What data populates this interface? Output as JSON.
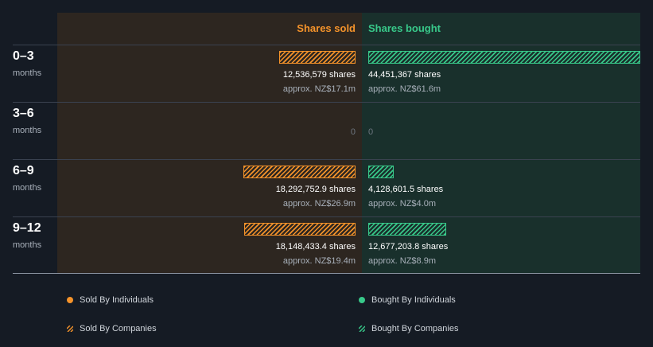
{
  "chart_data": {
    "type": "bar",
    "title": "",
    "headers": {
      "sold": "Shares sold",
      "bought": "Shares bought"
    },
    "categories": [
      {
        "period": "0–3",
        "unit": "months"
      },
      {
        "period": "3–6",
        "unit": "months"
      },
      {
        "period": "6–9",
        "unit": "months"
      },
      {
        "period": "9–12",
        "unit": "months"
      }
    ],
    "max_bar_value": 44451367,
    "series": [
      {
        "name": "Shares sold",
        "values": [
          12536579,
          0,
          18292752.9,
          18148433.4
        ],
        "share_labels": [
          "12,536,579 shares",
          "0",
          "18,292,752.9 shares",
          "18,148,433.4 shares"
        ],
        "value_labels": [
          "approx. NZ$17.1m",
          "",
          "approx. NZ$26.9m",
          "approx. NZ$19.4m"
        ],
        "color": "#f5932a"
      },
      {
        "name": "Shares bought",
        "values": [
          44451367,
          0,
          4128601.5,
          12677203.8
        ],
        "share_labels": [
          "44,451,367 shares",
          "0",
          "4,128,601.5 shares",
          "12,677,203.8 shares"
        ],
        "value_labels": [
          "approx. NZ$61.6m",
          "",
          "approx. NZ$4.0m",
          "approx. NZ$8.9m"
        ],
        "color": "#38c98a"
      }
    ],
    "legend": [
      {
        "label": "Sold By Individuals",
        "style": "dot",
        "color": "#f5932a"
      },
      {
        "label": "Bought By Individuals",
        "style": "dot",
        "color": "#38c98a"
      },
      {
        "label": "Sold By Companies",
        "style": "hatch",
        "color": "#f5932a"
      },
      {
        "label": "Bought By Companies",
        "style": "hatch",
        "color": "#38c98a"
      }
    ]
  }
}
